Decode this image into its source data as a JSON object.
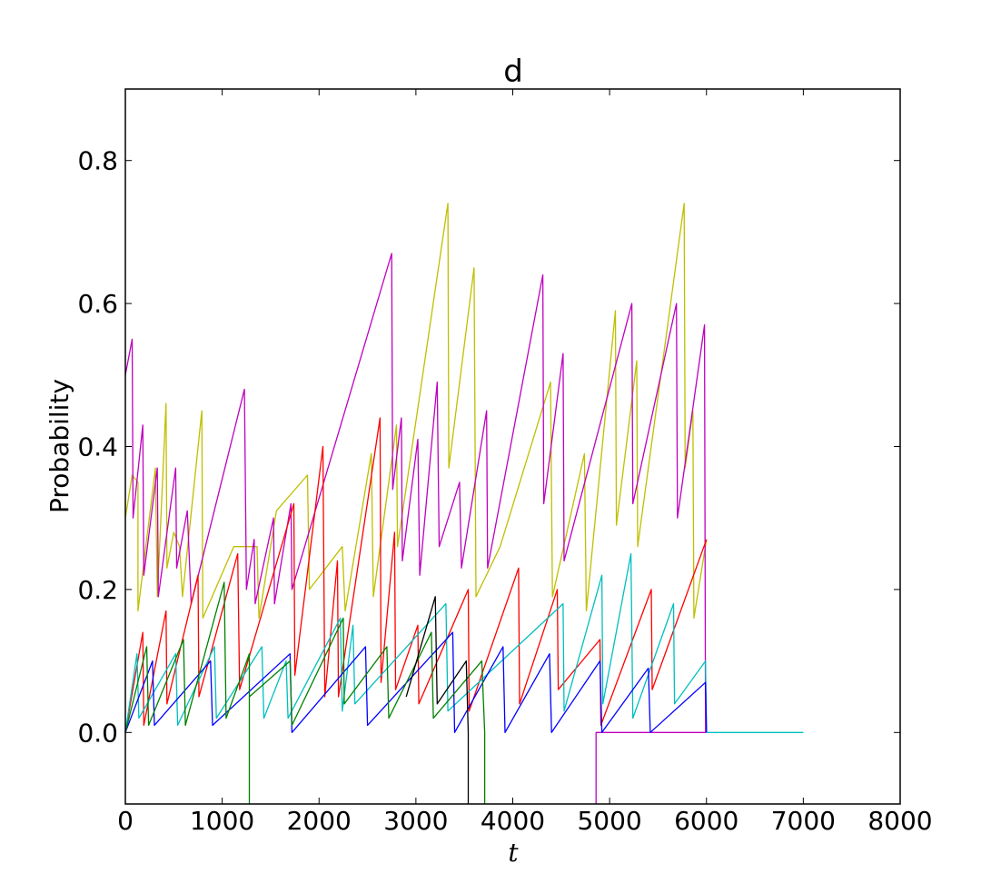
{
  "chart_data": {
    "type": "line",
    "title": "d",
    "xlabel": "t",
    "ylabel": "Probability",
    "xlim": [
      0,
      8000
    ],
    "ylim": [
      -0.1,
      0.9
    ],
    "xticks": [
      0,
      1000,
      2000,
      3000,
      4000,
      5000,
      6000,
      7000,
      8000
    ],
    "xtick_labels": [
      "0",
      "1000",
      "2000",
      "3000",
      "4000",
      "5000",
      "6000",
      "7000",
      "8000"
    ],
    "yticks": [
      0.0,
      0.2,
      0.4,
      0.6,
      0.8
    ],
    "ytick_labels": [
      "0.0",
      "0.2",
      "0.4",
      "0.6",
      "0.8"
    ],
    "grid": false,
    "legend": "none",
    "series": [
      {
        "color": "#bfbf00",
        "points": [
          [
            0,
            0.3
          ],
          [
            70,
            0.36
          ],
          [
            130,
            0.35
          ],
          [
            130,
            0.17
          ],
          [
            310,
            0.37
          ],
          [
            330,
            0.19
          ],
          [
            420,
            0.46
          ],
          [
            430,
            0.23
          ],
          [
            500,
            0.28
          ],
          [
            560,
            0.26
          ],
          [
            590,
            0.19
          ],
          [
            790,
            0.45
          ],
          [
            800,
            0.16
          ],
          [
            1120,
            0.26
          ],
          [
            1360,
            0.26
          ],
          [
            1380,
            0.16
          ],
          [
            1560,
            0.31
          ],
          [
            1880,
            0.36
          ],
          [
            1900,
            0.2
          ],
          [
            2240,
            0.26
          ],
          [
            2270,
            0.17
          ],
          [
            2540,
            0.39
          ],
          [
            2560,
            0.19
          ],
          [
            2800,
            0.43
          ],
          [
            2810,
            0.26
          ],
          [
            3330,
            0.74
          ],
          [
            3340,
            0.37
          ],
          [
            3600,
            0.65
          ],
          [
            3620,
            0.19
          ],
          [
            3870,
            0.26
          ],
          [
            4390,
            0.49
          ],
          [
            4410,
            0.19
          ],
          [
            4740,
            0.39
          ],
          [
            4760,
            0.17
          ],
          [
            5060,
            0.59
          ],
          [
            5070,
            0.29
          ],
          [
            5280,
            0.52
          ],
          [
            5290,
            0.26
          ],
          [
            5770,
            0.74
          ],
          [
            5780,
            0.37
          ],
          [
            5860,
            0.45
          ],
          [
            5870,
            0.16
          ],
          [
            6000,
            0.27
          ]
        ]
      },
      {
        "color": "#bf00bf",
        "points": [
          [
            0,
            0.5
          ],
          [
            70,
            0.55
          ],
          [
            80,
            0.3
          ],
          [
            180,
            0.43
          ],
          [
            190,
            0.22
          ],
          [
            330,
            0.37
          ],
          [
            340,
            0.19
          ],
          [
            520,
            0.37
          ],
          [
            530,
            0.23
          ],
          [
            640,
            0.31
          ],
          [
            680,
            0.18
          ],
          [
            1230,
            0.48
          ],
          [
            1250,
            0.2
          ],
          [
            1330,
            0.27
          ],
          [
            1340,
            0.18
          ],
          [
            1530,
            0.3
          ],
          [
            1540,
            0.18
          ],
          [
            1710,
            0.32
          ],
          [
            1720,
            0.2
          ],
          [
            2750,
            0.67
          ],
          [
            2760,
            0.34
          ],
          [
            2850,
            0.44
          ],
          [
            2860,
            0.24
          ],
          [
            3020,
            0.41
          ],
          [
            3040,
            0.22
          ],
          [
            3220,
            0.49
          ],
          [
            3240,
            0.26
          ],
          [
            3450,
            0.35
          ],
          [
            3470,
            0.23
          ],
          [
            3730,
            0.45
          ],
          [
            3740,
            0.23
          ],
          [
            4310,
            0.64
          ],
          [
            4320,
            0.32
          ],
          [
            4520,
            0.53
          ],
          [
            4530,
            0.24
          ],
          [
            5230,
            0.6
          ],
          [
            5240,
            0.32
          ],
          [
            5690,
            0.6
          ],
          [
            5700,
            0.3
          ],
          [
            5980,
            0.57
          ],
          [
            5990,
            0.0
          ],
          [
            4860,
            0.0
          ],
          [
            4860,
            -0.1
          ]
        ]
      },
      {
        "color": "#ff0000",
        "points": [
          [
            0,
            0.0
          ],
          [
            180,
            0.14
          ],
          [
            190,
            0.01
          ],
          [
            420,
            0.17
          ],
          [
            430,
            0.04
          ],
          [
            750,
            0.22
          ],
          [
            760,
            0.05
          ],
          [
            1160,
            0.25
          ],
          [
            1180,
            0.06
          ],
          [
            1740,
            0.32
          ],
          [
            1750,
            0.08
          ],
          [
            2040,
            0.4
          ],
          [
            2060,
            0.05
          ],
          [
            2190,
            0.24
          ],
          [
            2200,
            0.05
          ],
          [
            2630,
            0.44
          ],
          [
            2640,
            0.07
          ],
          [
            2780,
            0.28
          ],
          [
            2790,
            0.06
          ],
          [
            3020,
            0.15
          ],
          [
            3030,
            0.04
          ],
          [
            3540,
            0.2
          ],
          [
            3550,
            0.03
          ],
          [
            4060,
            0.23
          ],
          [
            4070,
            0.04
          ],
          [
            4460,
            0.2
          ],
          [
            4470,
            0.06
          ],
          [
            4900,
            0.13
          ],
          [
            4910,
            0.01
          ],
          [
            5430,
            0.2
          ],
          [
            5440,
            0.06
          ],
          [
            6000,
            0.27
          ]
        ]
      },
      {
        "color": "#00bfbf",
        "points": [
          [
            0,
            0.0
          ],
          [
            120,
            0.11
          ],
          [
            140,
            0.02
          ],
          [
            520,
            0.11
          ],
          [
            540,
            0.01
          ],
          [
            920,
            0.12
          ],
          [
            940,
            0.02
          ],
          [
            1410,
            0.12
          ],
          [
            1430,
            0.02
          ],
          [
            1660,
            0.1
          ],
          [
            1680,
            0.02
          ],
          [
            2220,
            0.16
          ],
          [
            2240,
            0.03
          ],
          [
            2350,
            0.15
          ],
          [
            2370,
            0.04
          ],
          [
            3310,
            0.18
          ],
          [
            3330,
            0.03
          ],
          [
            4520,
            0.18
          ],
          [
            4530,
            0.03
          ],
          [
            4920,
            0.22
          ],
          [
            4930,
            0.04
          ],
          [
            5220,
            0.25
          ],
          [
            5240,
            0.02
          ],
          [
            5660,
            0.18
          ],
          [
            5670,
            0.04
          ],
          [
            5990,
            0.1
          ],
          [
            6000,
            0.0
          ],
          [
            7000,
            0.0
          ]
        ]
      },
      {
        "color": "#0000ff",
        "points": [
          [
            0,
            0.0
          ],
          [
            280,
            0.1
          ],
          [
            300,
            0.01
          ],
          [
            880,
            0.1
          ],
          [
            900,
            0.01
          ],
          [
            1700,
            0.11
          ],
          [
            1720,
            0.0
          ],
          [
            2480,
            0.12
          ],
          [
            2500,
            0.01
          ],
          [
            3380,
            0.14
          ],
          [
            3400,
            0.0
          ],
          [
            3900,
            0.12
          ],
          [
            3920,
            0.0
          ],
          [
            4380,
            0.11
          ],
          [
            4400,
            0.0
          ],
          [
            4900,
            0.1
          ],
          [
            4920,
            0.0
          ],
          [
            5400,
            0.09
          ],
          [
            5420,
            0.0
          ],
          [
            5990,
            0.07
          ],
          [
            6000,
            0.0
          ]
        ]
      },
      {
        "color": "#008000",
        "points": [
          [
            0,
            0.0
          ],
          [
            220,
            0.12
          ],
          [
            240,
            0.01
          ],
          [
            600,
            0.13
          ],
          [
            620,
            0.01
          ],
          [
            1020,
            0.21
          ],
          [
            1040,
            0.02
          ],
          [
            1280,
            0.11
          ],
          [
            1280,
            -0.1
          ],
          [
            1280,
            0.05
          ],
          [
            1700,
            0.1
          ],
          [
            1720,
            0.01
          ],
          [
            2250,
            0.16
          ],
          [
            2260,
            0.04
          ],
          [
            2700,
            0.12
          ],
          [
            2720,
            0.02
          ],
          [
            3160,
            0.14
          ],
          [
            3180,
            0.02
          ],
          [
            3680,
            0.1
          ],
          [
            3710,
            0.0
          ],
          [
            3710,
            -0.1
          ]
        ]
      },
      {
        "color": "#000000",
        "points": [
          [
            2900,
            0.05
          ],
          [
            3200,
            0.19
          ],
          [
            3220,
            0.04
          ],
          [
            3520,
            0.1
          ],
          [
            3540,
            0.0
          ],
          [
            3540,
            -0.1
          ]
        ]
      }
    ]
  }
}
